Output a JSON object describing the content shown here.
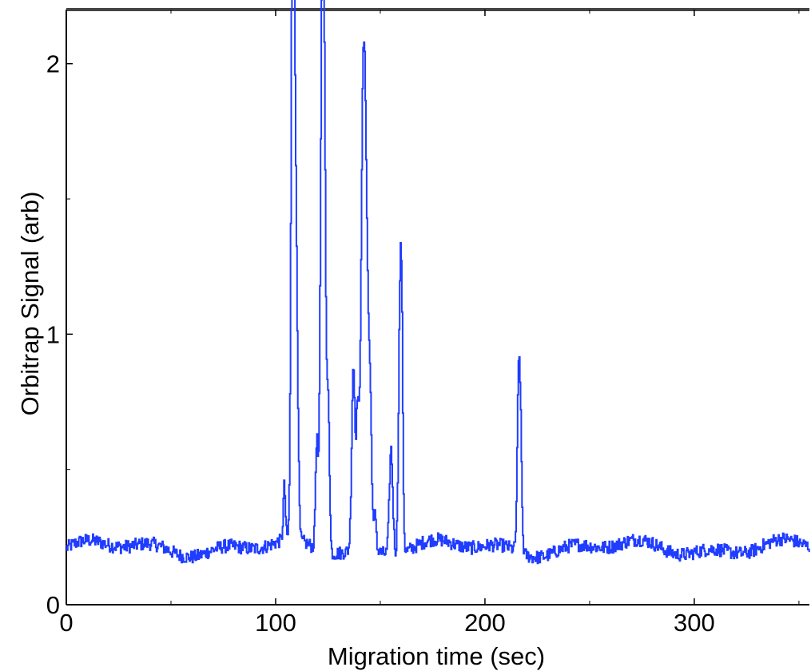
{
  "chart_data": {
    "type": "line",
    "title": "",
    "xlabel": "Migration time (sec)",
    "ylabel": "Orbitrap Signal (arb)",
    "xlim": [
      0,
      355
    ],
    "ylim": [
      0,
      2.2
    ],
    "x_ticks": [
      0,
      100,
      200,
      300
    ],
    "x_tick_labels": [
      "0",
      "100",
      "200",
      "300"
    ],
    "y_ticks": [
      0,
      1,
      2
    ],
    "y_tick_labels": [
      "0",
      "1",
      "2"
    ],
    "grid": false,
    "legend": "none",
    "series_color": "#1f3cff",
    "baseline": 0.21,
    "noise": 0.025,
    "peaks": [
      {
        "x": 104,
        "y": 0.42,
        "w": 0.5
      },
      {
        "x": 108.5,
        "y": 2.1,
        "w": 0.9
      },
      {
        "x": 107.8,
        "y": 1.5,
        "w": 0.6
      },
      {
        "x": 110,
        "y": 0.8,
        "w": 0.7
      },
      {
        "x": 119.5,
        "y": 0.63,
        "w": 0.6
      },
      {
        "x": 122,
        "y": 1.93,
        "w": 0.8
      },
      {
        "x": 123,
        "y": 1.7,
        "w": 0.8
      },
      {
        "x": 125,
        "y": 0.78,
        "w": 0.6
      },
      {
        "x": 137,
        "y": 0.93,
        "w": 0.8
      },
      {
        "x": 139,
        "y": 0.72,
        "w": 0.6
      },
      {
        "x": 141.5,
        "y": 1.67,
        "w": 1.0
      },
      {
        "x": 143,
        "y": 1.35,
        "w": 1.0
      },
      {
        "x": 145,
        "y": 0.75,
        "w": 0.8
      },
      {
        "x": 147.5,
        "y": 0.35,
        "w": 0.5
      },
      {
        "x": 155,
        "y": 0.62,
        "w": 0.8
      },
      {
        "x": 160,
        "y": 1.17,
        "w": 0.6
      },
      {
        "x": 159,
        "y": 0.9,
        "w": 0.6
      },
      {
        "x": 216,
        "y": 0.88,
        "w": 0.7
      },
      {
        "x": 217,
        "y": 0.5,
        "w": 0.6
      }
    ]
  }
}
